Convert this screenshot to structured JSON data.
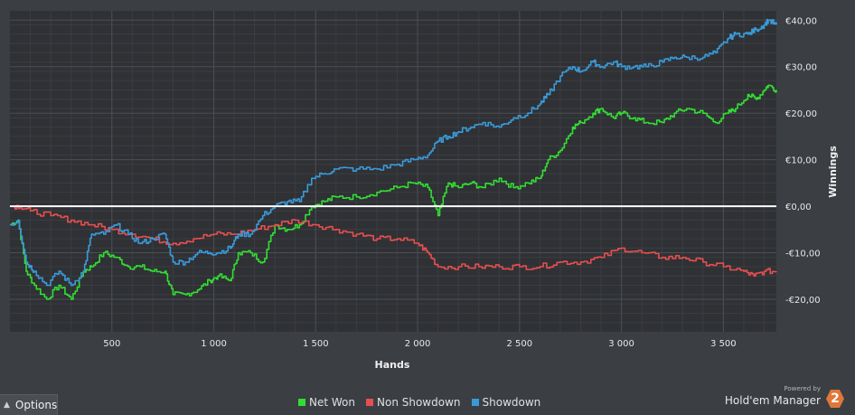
{
  "chart_data": {
    "type": "line",
    "xlabel": "Hands",
    "ylabel": "Winnings",
    "xlim": [
      0,
      3760
    ],
    "ylim": [
      -27,
      42
    ],
    "x_ticks": [
      500,
      1000,
      1500,
      2000,
      2500,
      3000,
      3500
    ],
    "x_tick_labels": [
      "500",
      "1 000",
      "1 500",
      "2 000",
      "2 500",
      "3 000",
      "3 500"
    ],
    "y_ticks": [
      -20,
      -10,
      0,
      10,
      20,
      30,
      40
    ],
    "y_tick_labels": [
      "-€20,00",
      "-€10,00",
      "€0,00",
      "€10,00",
      "€20,00",
      "€30,00",
      "€40,00"
    ],
    "grid": true,
    "zero_line": 0,
    "series": [
      {
        "name": "Net Won",
        "color": "#33dd33",
        "x": [
          0,
          40,
          80,
          120,
          180,
          240,
          300,
          360,
          400,
          460,
          520,
          580,
          640,
          700,
          760,
          800,
          860,
          920,
          980,
          1020,
          1080,
          1120,
          1180,
          1240,
          1300,
          1360,
          1420,
          1480,
          1540,
          1600,
          1700,
          1800,
          1900,
          1980,
          2050,
          2100,
          2150,
          2200,
          2260,
          2320,
          2400,
          2470,
          2540,
          2600,
          2640,
          2700,
          2760,
          2800,
          2860,
          2900,
          2960,
          3000,
          3060,
          3120,
          3200,
          3260,
          3320,
          3400,
          3460,
          3520,
          3560,
          3620,
          3660,
          3700,
          3720,
          3760
        ],
        "y": [
          -4,
          -3,
          -14,
          -17,
          -20,
          -17,
          -20,
          -14,
          -13,
          -10,
          -11,
          -13,
          -13,
          -14,
          -14,
          -19,
          -19,
          -18,
          -16,
          -15,
          -16,
          -10,
          -10,
          -12,
          -4,
          -5,
          -4,
          0,
          1,
          2,
          2,
          3,
          4,
          5,
          4,
          -2,
          5,
          4,
          5,
          4,
          6,
          4,
          5,
          6,
          10,
          12,
          17,
          18,
          20,
          21,
          19,
          20,
          19,
          18,
          18,
          20,
          21,
          20,
          18,
          20,
          21,
          24,
          23,
          25,
          26,
          25
        ]
      },
      {
        "name": "Non Showdown",
        "color": "#e84e4e",
        "x": [
          0,
          50,
          100,
          200,
          300,
          400,
          500,
          600,
          700,
          800,
          900,
          1000,
          1100,
          1200,
          1300,
          1400,
          1500,
          1600,
          1700,
          1800,
          1900,
          2000,
          2050,
          2100,
          2200,
          2300,
          2400,
          2500,
          2600,
          2700,
          2800,
          2900,
          3000,
          3100,
          3200,
          3300,
          3400,
          3500,
          3600,
          3650,
          3700,
          3760
        ],
        "y": [
          0,
          0,
          -1,
          -2,
          -3,
          -4,
          -5,
          -6,
          -7,
          -8,
          -7,
          -6,
          -6,
          -5,
          -4,
          -3,
          -4,
          -5,
          -6,
          -7,
          -7,
          -8,
          -10,
          -13,
          -13,
          -13,
          -13,
          -13,
          -13,
          -12,
          -12,
          -11,
          -9,
          -10,
          -11,
          -11,
          -12,
          -13,
          -14,
          -15,
          -14,
          -14
        ]
      },
      {
        "name": "Showdown",
        "color": "#3a9ad9",
        "x": [
          0,
          40,
          80,
          120,
          180,
          240,
          300,
          360,
          400,
          460,
          520,
          580,
          640,
          700,
          760,
          800,
          860,
          920,
          980,
          1020,
          1080,
          1120,
          1180,
          1240,
          1300,
          1360,
          1420,
          1480,
          1540,
          1600,
          1700,
          1800,
          1900,
          1980,
          2050,
          2100,
          2150,
          2200,
          2260,
          2320,
          2400,
          2470,
          2540,
          2600,
          2640,
          2700,
          2760,
          2800,
          2860,
          2900,
          2960,
          3000,
          3060,
          3120,
          3200,
          3260,
          3320,
          3400,
          3460,
          3520,
          3560,
          3620,
          3660,
          3700,
          3720,
          3760
        ],
        "y": [
          -4,
          -3,
          -12,
          -14,
          -17,
          -14,
          -17,
          -14,
          -6,
          -6,
          -4,
          -6,
          -8,
          -7,
          -6,
          -12,
          -12,
          -10,
          -10,
          -10,
          -9,
          -6,
          -6,
          -2,
          0,
          1,
          1,
          6,
          7,
          8,
          8,
          8,
          9,
          10,
          11,
          14,
          15,
          16,
          17,
          18,
          17,
          19,
          20,
          22,
          24,
          28,
          30,
          29,
          31,
          30,
          31,
          30,
          30,
          30,
          31,
          32,
          32,
          32,
          33,
          36,
          37,
          37,
          38,
          39,
          40,
          39
        ]
      }
    ]
  },
  "legend": [
    {
      "label": "Net Won",
      "color": "#33dd33"
    },
    {
      "label": "Non Showdown",
      "color": "#e84e4e"
    },
    {
      "label": "Showdown",
      "color": "#3a9ad9"
    }
  ],
  "footer": {
    "options_label": "Options",
    "powered_by": "Powered by",
    "brand_name": "Hold'em Manager",
    "brand_logo": "2"
  }
}
